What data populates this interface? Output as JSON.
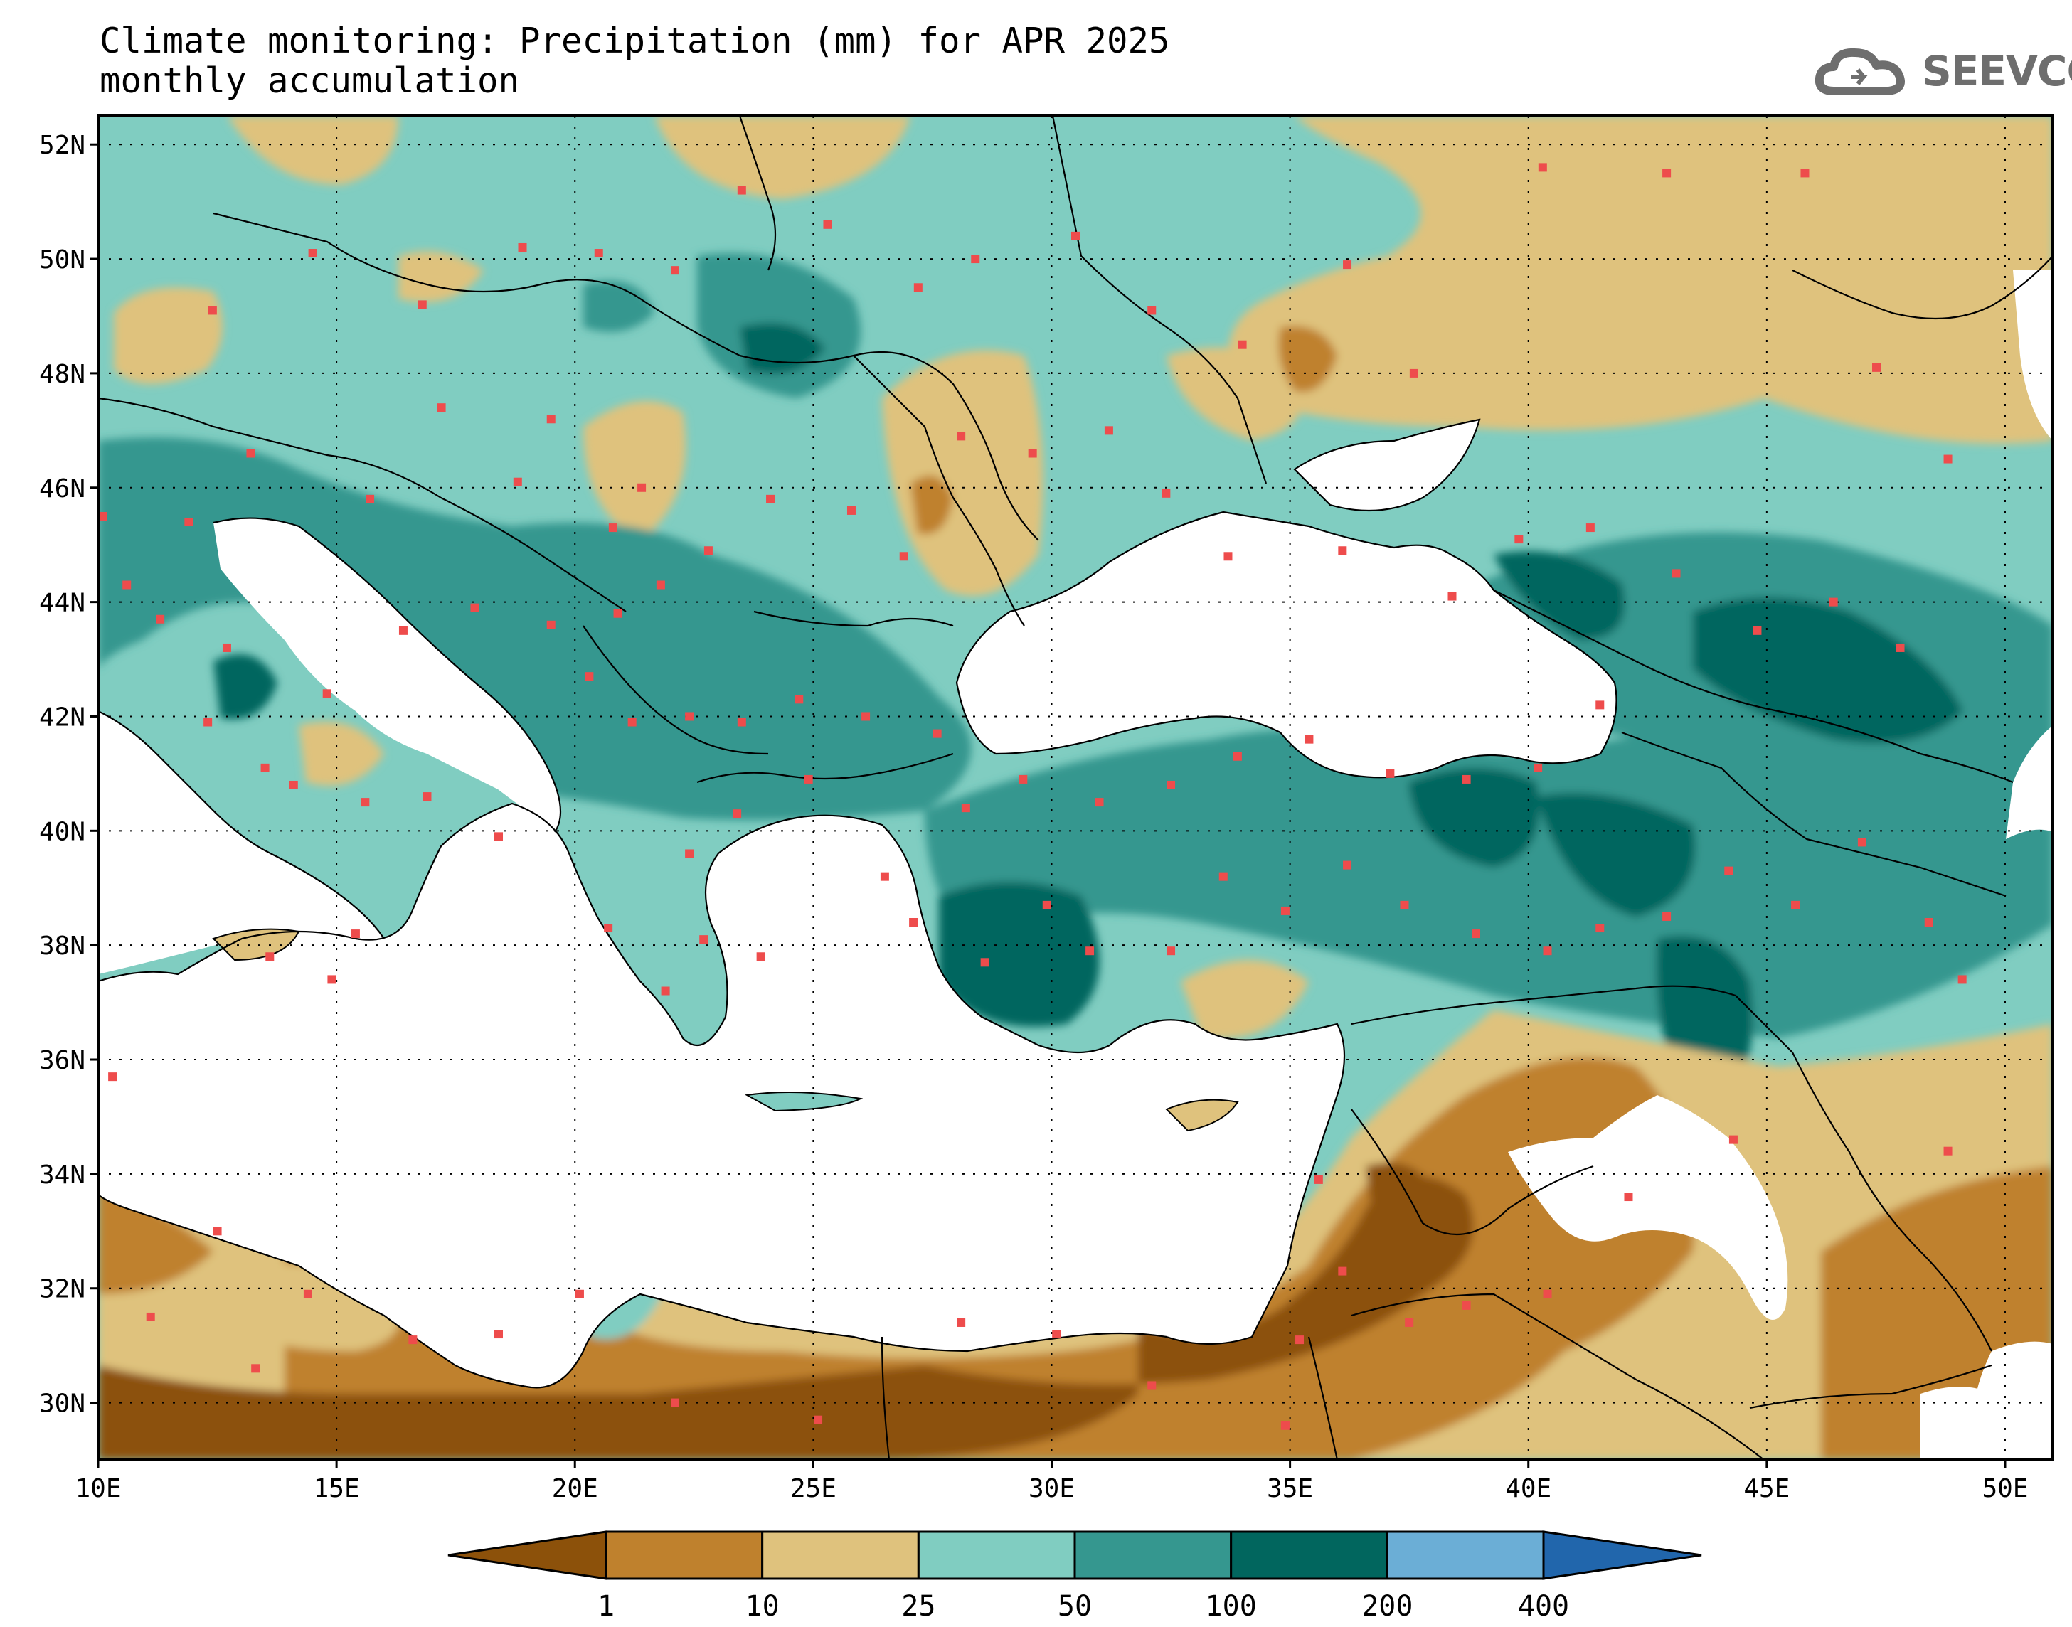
{
  "header": {
    "title_line1": "Climate monitoring: Precipitation (mm) for APR 2025",
    "title_line2": "monthly accumulation"
  },
  "logo": {
    "text": "SEEVCCC",
    "icon": "cloud-icon",
    "color": "#6e6e6e"
  },
  "axes": {
    "lat_labels": [
      "52N",
      "50N",
      "48N",
      "46N",
      "44N",
      "42N",
      "40N",
      "38N",
      "36N",
      "34N",
      "32N",
      "30N"
    ],
    "lon_labels": [
      "10E",
      "15E",
      "20E",
      "25E",
      "30E",
      "35E",
      "40E",
      "45E",
      "50E"
    ],
    "lat_values": [
      52,
      50,
      48,
      46,
      44,
      42,
      40,
      38,
      36,
      34,
      32,
      30
    ],
    "lon_values": [
      10,
      15,
      20,
      25,
      30,
      35,
      40,
      45,
      50
    ],
    "lon_range": [
      10,
      51
    ],
    "lat_range": [
      29,
      52.5
    ],
    "grid": "dotted"
  },
  "colorbar": {
    "thresholds": [
      "1",
      "10",
      "25",
      "50",
      "100",
      "200",
      "400"
    ],
    "colors": [
      "#8c510a",
      "#bf812d",
      "#dfc27d",
      "#80cdc1",
      "#35978f",
      "#01665e",
      "#6baed6",
      "#2166ac"
    ]
  },
  "stations": [
    [
      12.4,
      49.1
    ],
    [
      14.5,
      50.1
    ],
    [
      16.8,
      49.2
    ],
    [
      18.9,
      50.2
    ],
    [
      20.5,
      50.1
    ],
    [
      22.1,
      49.8
    ],
    [
      23.5,
      51.2
    ],
    [
      25.3,
      50.6
    ],
    [
      27.2,
      49.5
    ],
    [
      28.4,
      50.0
    ],
    [
      30.5,
      50.4
    ],
    [
      32.1,
      49.1
    ],
    [
      34.0,
      48.5
    ],
    [
      36.2,
      49.9
    ],
    [
      37.6,
      48.0
    ],
    [
      40.3,
      51.6
    ],
    [
      42.9,
      51.5
    ],
    [
      45.8,
      51.5
    ],
    [
      47.3,
      48.1
    ],
    [
      48.8,
      46.5
    ],
    [
      13.2,
      46.6
    ],
    [
      15.7,
      45.8
    ],
    [
      17.2,
      47.4
    ],
    [
      18.8,
      46.1
    ],
    [
      19.5,
      47.2
    ],
    [
      20.8,
      45.3
    ],
    [
      21.4,
      46.0
    ],
    [
      22.8,
      44.9
    ],
    [
      24.1,
      45.8
    ],
    [
      25.8,
      45.6
    ],
    [
      26.9,
      44.8
    ],
    [
      28.1,
      46.9
    ],
    [
      29.6,
      46.6
    ],
    [
      31.2,
      47.0
    ],
    [
      32.4,
      45.9
    ],
    [
      33.7,
      44.8
    ],
    [
      36.1,
      44.9
    ],
    [
      38.4,
      44.1
    ],
    [
      39.8,
      45.1
    ],
    [
      41.3,
      45.3
    ],
    [
      43.1,
      44.5
    ],
    [
      44.8,
      43.5
    ],
    [
      46.4,
      44.0
    ],
    [
      47.8,
      43.2
    ],
    [
      41.5,
      42.2
    ],
    [
      40.2,
      41.1
    ],
    [
      38.7,
      40.9
    ],
    [
      37.1,
      41.0
    ],
    [
      35.4,
      41.6
    ],
    [
      33.9,
      41.3
    ],
    [
      32.5,
      40.8
    ],
    [
      31.0,
      40.5
    ],
    [
      29.4,
      40.9
    ],
    [
      28.2,
      40.4
    ],
    [
      27.6,
      41.7
    ],
    [
      26.1,
      42.0
    ],
    [
      24.7,
      42.3
    ],
    [
      23.5,
      41.9
    ],
    [
      22.4,
      42.0
    ],
    [
      21.2,
      41.9
    ],
    [
      20.3,
      42.7
    ],
    [
      19.5,
      43.6
    ],
    [
      20.9,
      43.8
    ],
    [
      21.8,
      44.3
    ],
    [
      17.9,
      43.9
    ],
    [
      16.4,
      43.5
    ],
    [
      14.8,
      42.4
    ],
    [
      13.5,
      41.1
    ],
    [
      12.3,
      41.9
    ],
    [
      12.7,
      43.2
    ],
    [
      11.3,
      43.7
    ],
    [
      10.6,
      44.3
    ],
    [
      10.1,
      45.5
    ],
    [
      11.9,
      45.4
    ],
    [
      14.1,
      40.8
    ],
    [
      15.6,
      40.5
    ],
    [
      16.9,
      40.6
    ],
    [
      18.4,
      39.9
    ],
    [
      13.6,
      37.8
    ],
    [
      14.9,
      37.4
    ],
    [
      15.4,
      38.2
    ],
    [
      20.7,
      38.3
    ],
    [
      21.9,
      37.2
    ],
    [
      22.7,
      38.1
    ],
    [
      23.9,
      37.8
    ],
    [
      22.4,
      39.6
    ],
    [
      23.4,
      40.3
    ],
    [
      24.9,
      40.9
    ],
    [
      26.5,
      39.2
    ],
    [
      27.1,
      38.4
    ],
    [
      28.6,
      37.7
    ],
    [
      29.9,
      38.7
    ],
    [
      30.8,
      37.9
    ],
    [
      32.5,
      37.9
    ],
    [
      33.6,
      39.2
    ],
    [
      34.9,
      38.6
    ],
    [
      36.2,
      39.4
    ],
    [
      37.4,
      38.7
    ],
    [
      38.9,
      38.2
    ],
    [
      40.4,
      37.9
    ],
    [
      41.5,
      38.3
    ],
    [
      42.9,
      38.5
    ],
    [
      44.2,
      39.3
    ],
    [
      45.6,
      38.7
    ],
    [
      47.0,
      39.8
    ],
    [
      48.4,
      38.4
    ],
    [
      49.1,
      37.4
    ],
    [
      48.8,
      34.4
    ],
    [
      44.3,
      34.6
    ],
    [
      42.1,
      33.6
    ],
    [
      40.4,
      31.9
    ],
    [
      38.7,
      31.7
    ],
    [
      37.5,
      31.4
    ],
    [
      36.1,
      32.3
    ],
    [
      35.6,
      33.9
    ],
    [
      35.2,
      31.1
    ],
    [
      34.9,
      29.6
    ],
    [
      32.1,
      30.3
    ],
    [
      30.1,
      31.2
    ],
    [
      28.1,
      31.4
    ],
    [
      25.1,
      29.7
    ],
    [
      22.1,
      30.0
    ],
    [
      20.1,
      31.9
    ],
    [
      18.4,
      31.2
    ],
    [
      16.6,
      31.1
    ],
    [
      14.4,
      31.9
    ],
    [
      13.3,
      30.6
    ],
    [
      11.1,
      31.5
    ],
    [
      12.5,
      33.0
    ],
    [
      10.3,
      35.7
    ]
  ]
}
